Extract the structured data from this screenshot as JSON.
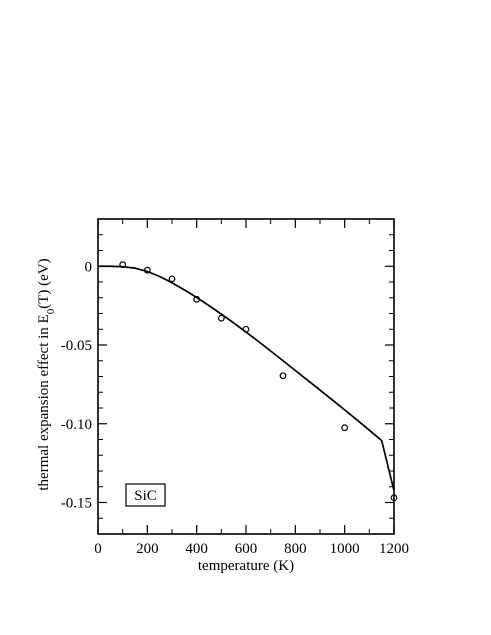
{
  "chart_data": {
    "type": "scatter",
    "title": "",
    "xlabel": "temperature (K)",
    "ylabel_parts": {
      "before": "thermal expansion  effect  in  E",
      "sub": "0",
      "after": "(T)  (eV)"
    },
    "xlim": [
      0,
      1200
    ],
    "ylim": [
      -0.17,
      0.03
    ],
    "x_ticks": [
      {
        "value": 0,
        "label": "0"
      },
      {
        "value": 200,
        "label": "200"
      },
      {
        "value": 400,
        "label": "400"
      },
      {
        "value": 600,
        "label": "600"
      },
      {
        "value": 800,
        "label": "800"
      },
      {
        "value": 1000,
        "label": "1000"
      },
      {
        "value": 1200,
        "label": "1200"
      }
    ],
    "y_ticks": [
      {
        "value": 0,
        "label": "0"
      },
      {
        "value": -0.05,
        "label": "-0.05"
      },
      {
        "value": -0.1,
        "label": "-0.10"
      },
      {
        "value": -0.15,
        "label": "-0.15"
      }
    ],
    "x_minor_step": 100,
    "y_minor_step": 0.01,
    "grid": false,
    "legend": "none",
    "annotation": {
      "text": "SiC",
      "placement": "bottom-left",
      "boxed": true
    },
    "series": [
      {
        "kind": "points",
        "marker": "open-circle",
        "color": "#000000",
        "x": [
          100,
          200,
          300,
          400,
          500,
          600,
          750,
          1000,
          1200
        ],
        "y": [
          0.001,
          -0.0025,
          -0.008,
          -0.021,
          -0.033,
          -0.04,
          -0.0695,
          -0.1025,
          -0.147
        ]
      },
      {
        "kind": "line",
        "style": "solid",
        "color": "#000000",
        "x": [
          0,
          50,
          100,
          150,
          200,
          250,
          300,
          350,
          400,
          450,
          500,
          550,
          600,
          650,
          700,
          750,
          800,
          850,
          900,
          950,
          1000,
          1050,
          1100,
          1150,
          1200
        ],
        "y": [
          0.0,
          0.0,
          -0.0003,
          -0.0012,
          -0.0033,
          -0.0065,
          -0.0105,
          -0.015,
          -0.0198,
          -0.025,
          -0.0304,
          -0.036,
          -0.0418,
          -0.0477,
          -0.0538,
          -0.06,
          -0.0662,
          -0.0724,
          -0.0786,
          -0.0849,
          -0.0912,
          -0.0976,
          -0.1041,
          -0.1107,
          -0.1425
        ]
      }
    ]
  }
}
